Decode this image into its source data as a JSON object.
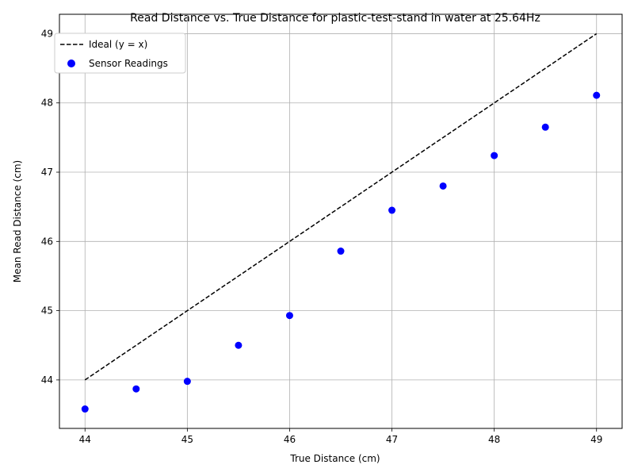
{
  "chart_data": {
    "type": "scatter",
    "title": "Read Distance vs. True Distance for plastic-test-stand in water at 25.64Hz",
    "xlabel": "True Distance (cm)",
    "ylabel": "Mean Read Distance (cm)",
    "xlim": [
      43.75,
      49.25
    ],
    "ylim": [
      43.3,
      49.28
    ],
    "x_ticks": [
      "44",
      "45",
      "46",
      "47",
      "48",
      "49"
    ],
    "y_ticks": [
      "44",
      "45",
      "46",
      "47",
      "48",
      "49"
    ],
    "grid": true,
    "legend_position": "top-left",
    "series": [
      {
        "name": "Ideal (y = x)",
        "kind": "line",
        "style": "dashed",
        "color": "#000000",
        "x": [
          44,
          49
        ],
        "y": [
          44,
          49
        ]
      },
      {
        "name": "Sensor Readings",
        "kind": "scatter",
        "color": "#0000ff",
        "x": [
          44.0,
          44.5,
          45.0,
          45.5,
          46.0,
          46.5,
          47.0,
          47.5,
          48.0,
          48.5,
          49.0
        ],
        "y": [
          43.58,
          43.87,
          43.98,
          44.5,
          44.93,
          45.86,
          46.45,
          46.8,
          47.24,
          47.65,
          48.11
        ]
      }
    ]
  }
}
